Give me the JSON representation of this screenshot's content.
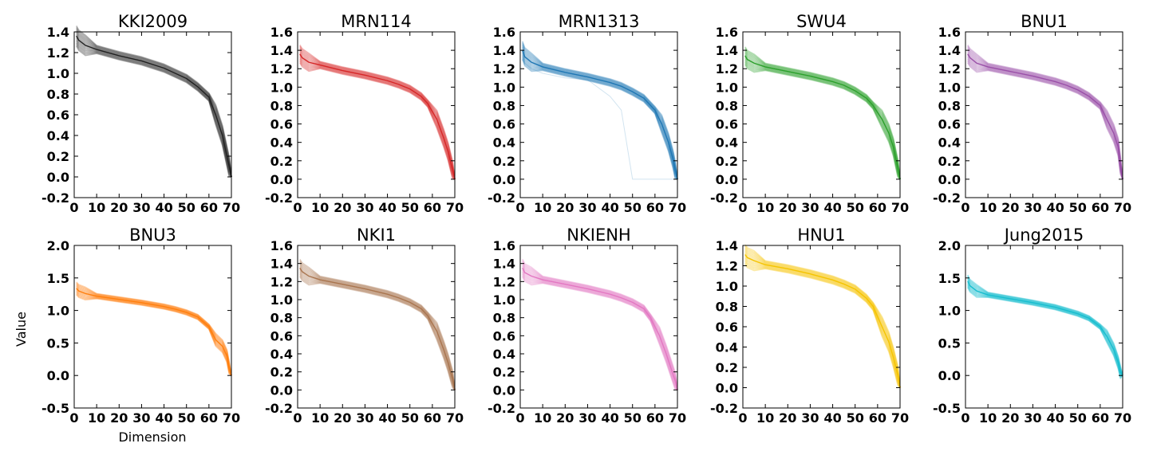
{
  "figure": {
    "xlabel": "Dimension",
    "ylabel": "Value"
  },
  "chart_data": [
    {
      "type": "line",
      "title": "KKI2009",
      "color": "#222222",
      "x_ticks": [
        0,
        10,
        20,
        30,
        40,
        50,
        60,
        70
      ],
      "y_ticks": [
        -0.2,
        0.0,
        0.2,
        0.4,
        0.6,
        0.8,
        1.0,
        1.2,
        1.4
      ],
      "xlim": [
        0,
        70
      ],
      "ylim": [
        -0.2,
        1.4
      ],
      "x": [
        1,
        2,
        5,
        10,
        20,
        30,
        40,
        45,
        50,
        55,
        60,
        63,
        66,
        68,
        69,
        70
      ],
      "series": [
        {
          "values": [
            1.36,
            1.32,
            1.27,
            1.23,
            1.17,
            1.12,
            1.05,
            1.0,
            0.95,
            0.87,
            0.77,
            0.6,
            0.4,
            0.2,
            0.1,
            0.0
          ]
        }
      ]
    },
    {
      "type": "line",
      "title": "MRN114",
      "color": "#d62728",
      "x_ticks": [
        0,
        10,
        20,
        30,
        40,
        50,
        60,
        70
      ],
      "y_ticks": [
        -0.2,
        0.0,
        0.2,
        0.4,
        0.6,
        0.8,
        1.0,
        1.2,
        1.4,
        1.6
      ],
      "xlim": [
        0,
        70
      ],
      "ylim": [
        -0.2,
        1.6
      ],
      "x": [
        1,
        2,
        5,
        10,
        20,
        30,
        40,
        45,
        50,
        55,
        58,
        62,
        65,
        67,
        69,
        70
      ],
      "series": [
        {
          "values": [
            1.36,
            1.32,
            1.27,
            1.24,
            1.18,
            1.13,
            1.07,
            1.03,
            0.98,
            0.9,
            0.82,
            0.65,
            0.45,
            0.3,
            0.1,
            0.0
          ]
        }
      ]
    },
    {
      "type": "line",
      "title": "MRN1313",
      "color": "#1f77b4",
      "x_ticks": [
        0,
        10,
        20,
        30,
        40,
        50,
        60,
        70
      ],
      "y_ticks": [
        -0.2,
        0.0,
        0.2,
        0.4,
        0.6,
        0.8,
        1.0,
        1.2,
        1.4,
        1.6
      ],
      "xlim": [
        0,
        70
      ],
      "ylim": [
        -0.2,
        1.6
      ],
      "x": [
        1,
        2,
        5,
        10,
        20,
        30,
        40,
        45,
        50,
        55,
        60,
        63,
        66,
        68,
        69,
        70
      ],
      "series": [
        {
          "values": [
            1.4,
            1.33,
            1.27,
            1.22,
            1.16,
            1.11,
            1.05,
            1.01,
            0.95,
            0.88,
            0.75,
            0.6,
            0.4,
            0.22,
            0.1,
            0.0
          ]
        },
        {
          "values": [
            1.3,
            1.26,
            1.2,
            1.15,
            1.1,
            1.08,
            0.9,
            0.75,
            0.0,
            0.0,
            0.0,
            0.0,
            0.0,
            0.0,
            0.0,
            0.0
          ]
        }
      ]
    },
    {
      "type": "line",
      "title": "SWU4",
      "color": "#2ca02c",
      "x_ticks": [
        0,
        10,
        20,
        30,
        40,
        50,
        60,
        70
      ],
      "y_ticks": [
        -0.2,
        0.0,
        0.2,
        0.4,
        0.6,
        0.8,
        1.0,
        1.2,
        1.4,
        1.6
      ],
      "xlim": [
        0,
        70
      ],
      "ylim": [
        -0.2,
        1.6
      ],
      "x": [
        1,
        2,
        5,
        10,
        20,
        30,
        40,
        45,
        50,
        55,
        58,
        62,
        65,
        67,
        69,
        70
      ],
      "series": [
        {
          "values": [
            1.34,
            1.3,
            1.26,
            1.22,
            1.17,
            1.12,
            1.06,
            1.02,
            0.96,
            0.88,
            0.8,
            0.65,
            0.5,
            0.35,
            0.12,
            0.0
          ]
        }
      ]
    },
    {
      "type": "line",
      "title": "BNU1",
      "color": "#9a50a8",
      "x_ticks": [
        0,
        10,
        20,
        30,
        40,
        50,
        60,
        70
      ],
      "y_ticks": [
        -0.2,
        0.0,
        0.2,
        0.4,
        0.6,
        0.8,
        1.0,
        1.2,
        1.4,
        1.6
      ],
      "xlim": [
        0,
        70
      ],
      "ylim": [
        -0.2,
        1.6
      ],
      "x": [
        1,
        2,
        5,
        10,
        20,
        30,
        40,
        45,
        50,
        55,
        60,
        63,
        66,
        68,
        69,
        70
      ],
      "series": [
        {
          "values": [
            1.36,
            1.32,
            1.26,
            1.22,
            1.17,
            1.12,
            1.06,
            1.02,
            0.97,
            0.9,
            0.8,
            0.65,
            0.5,
            0.35,
            0.15,
            0.0
          ]
        }
      ]
    },
    {
      "type": "line",
      "title": "BNU3",
      "color": "#ff7f0e",
      "x_ticks": [
        0,
        10,
        20,
        30,
        40,
        50,
        60,
        70
      ],
      "y_ticks": [
        -0.5,
        0.0,
        0.5,
        1.0,
        1.5,
        2.0
      ],
      "xlim": [
        0,
        70
      ],
      "ylim": [
        -0.5,
        2.0
      ],
      "x": [
        1,
        2,
        5,
        10,
        20,
        30,
        40,
        45,
        50,
        55,
        60,
        63,
        66,
        68,
        69,
        70
      ],
      "series": [
        {
          "values": [
            1.34,
            1.3,
            1.26,
            1.22,
            1.17,
            1.12,
            1.06,
            1.02,
            0.97,
            0.9,
            0.75,
            0.55,
            0.45,
            0.3,
            0.12,
            0.0
          ]
        }
      ]
    },
    {
      "type": "line",
      "title": "NKI1",
      "color": "#a9754f",
      "x_ticks": [
        0,
        10,
        20,
        30,
        40,
        50,
        60,
        70
      ],
      "y_ticks": [
        -0.2,
        0.0,
        0.2,
        0.4,
        0.6,
        0.8,
        1.0,
        1.2,
        1.4,
        1.6
      ],
      "xlim": [
        0,
        70
      ],
      "ylim": [
        -0.2,
        1.6
      ],
      "x": [
        1,
        2,
        5,
        10,
        20,
        30,
        40,
        45,
        50,
        55,
        58,
        62,
        65,
        67,
        69,
        70
      ],
      "series": [
        {
          "values": [
            1.35,
            1.31,
            1.26,
            1.22,
            1.17,
            1.12,
            1.06,
            1.02,
            0.97,
            0.9,
            0.82,
            0.65,
            0.45,
            0.3,
            0.12,
            0.0
          ]
        }
      ]
    },
    {
      "type": "line",
      "title": "NKIENH",
      "color": "#e377c2",
      "x_ticks": [
        0,
        10,
        20,
        30,
        40,
        50,
        60,
        70
      ],
      "y_ticks": [
        -0.2,
        0.0,
        0.2,
        0.4,
        0.6,
        0.8,
        1.0,
        1.2,
        1.4,
        1.6
      ],
      "xlim": [
        0,
        70
      ],
      "ylim": [
        -0.2,
        1.6
      ],
      "x": [
        1,
        2,
        5,
        10,
        20,
        30,
        40,
        45,
        50,
        55,
        58,
        62,
        65,
        67,
        69,
        70
      ],
      "series": [
        {
          "values": [
            1.35,
            1.3,
            1.26,
            1.22,
            1.17,
            1.12,
            1.06,
            1.02,
            0.97,
            0.9,
            0.8,
            0.6,
            0.4,
            0.25,
            0.1,
            0.0
          ]
        }
      ]
    },
    {
      "type": "line",
      "title": "HNU1",
      "color": "#f5c400",
      "x_ticks": [
        0,
        10,
        20,
        30,
        40,
        50,
        60,
        70
      ],
      "y_ticks": [
        -0.2,
        0.0,
        0.2,
        0.4,
        0.6,
        0.8,
        1.0,
        1.2,
        1.4
      ],
      "xlim": [
        0,
        70
      ],
      "ylim": [
        -0.2,
        1.4
      ],
      "x": [
        1,
        2,
        5,
        10,
        20,
        30,
        40,
        45,
        50,
        55,
        58,
        62,
        65,
        67,
        69,
        70
      ],
      "series": [
        {
          "values": [
            1.31,
            1.28,
            1.25,
            1.21,
            1.17,
            1.12,
            1.06,
            1.02,
            0.97,
            0.88,
            0.8,
            0.6,
            0.45,
            0.3,
            0.12,
            0.0
          ]
        }
      ]
    },
    {
      "type": "line",
      "title": "Jung2015",
      "color": "#17becf",
      "x_ticks": [
        0,
        10,
        20,
        30,
        40,
        50,
        60,
        70
      ],
      "y_ticks": [
        -0.5,
        0.0,
        0.5,
        1.0,
        1.5,
        2.0
      ],
      "xlim": [
        0,
        70
      ],
      "ylim": [
        -0.5,
        2.0
      ],
      "x": [
        1,
        2,
        5,
        10,
        20,
        30,
        40,
        45,
        50,
        55,
        60,
        63,
        66,
        68,
        69,
        70
      ],
      "series": [
        {
          "values": [
            1.45,
            1.38,
            1.3,
            1.24,
            1.18,
            1.12,
            1.05,
            1.0,
            0.95,
            0.88,
            0.75,
            0.6,
            0.4,
            0.2,
            0.05,
            0.0
          ]
        }
      ]
    }
  ]
}
